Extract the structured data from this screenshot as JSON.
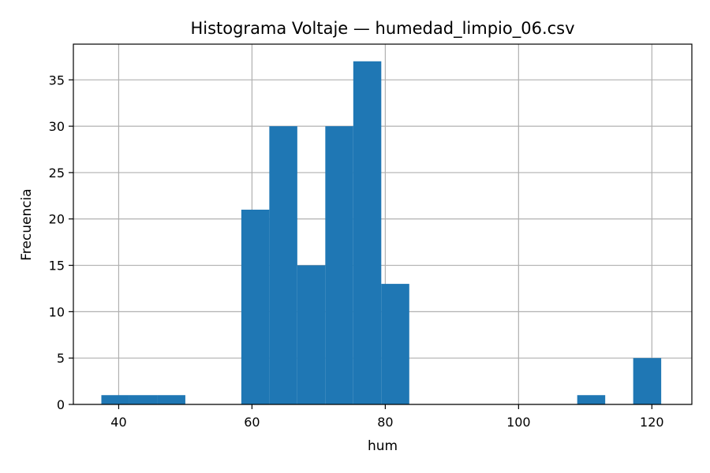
{
  "chart_data": {
    "type": "bar",
    "title": "Histograma Voltaje — humedad_limpio_06.csv",
    "xlabel": "hum",
    "ylabel": "Frecuencia",
    "xlim": [
      33.2,
      126.0
    ],
    "ylim": [
      0,
      38.85
    ],
    "x_ticks": [
      40,
      60,
      80,
      100,
      120
    ],
    "y_ticks": [
      0,
      5,
      10,
      15,
      20,
      25,
      30,
      35
    ],
    "grid": true,
    "bar_color": "#1f77b4",
    "bins": [
      {
        "x0": 37.4,
        "x1": 41.6,
        "count": 1
      },
      {
        "x0": 41.6,
        "x1": 45.8,
        "count": 1
      },
      {
        "x0": 45.8,
        "x1": 50.0,
        "count": 1
      },
      {
        "x0": 58.4,
        "x1": 62.6,
        "count": 21
      },
      {
        "x0": 62.6,
        "x1": 66.8,
        "count": 30
      },
      {
        "x0": 66.8,
        "x1": 71.0,
        "count": 15
      },
      {
        "x0": 71.0,
        "x1": 75.2,
        "count": 30
      },
      {
        "x0": 75.2,
        "x1": 79.4,
        "count": 37
      },
      {
        "x0": 79.4,
        "x1": 83.6,
        "count": 13
      },
      {
        "x0": 108.8,
        "x1": 113.0,
        "count": 1
      },
      {
        "x0": 117.2,
        "x1": 121.4,
        "count": 5
      }
    ]
  }
}
